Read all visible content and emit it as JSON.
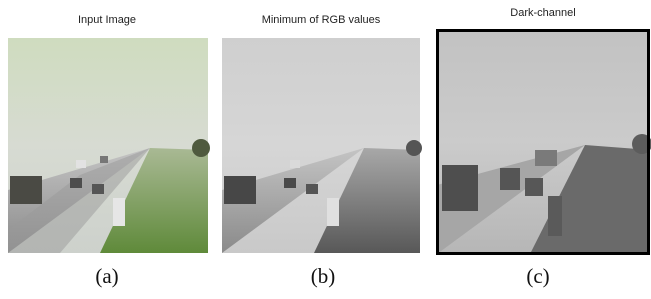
{
  "panels": [
    {
      "title": "Input Image",
      "caption": "(a)"
    },
    {
      "title": "Minimum of RGB values",
      "caption": "(b)"
    },
    {
      "title": "Dark-channel",
      "caption": "(c)"
    }
  ]
}
